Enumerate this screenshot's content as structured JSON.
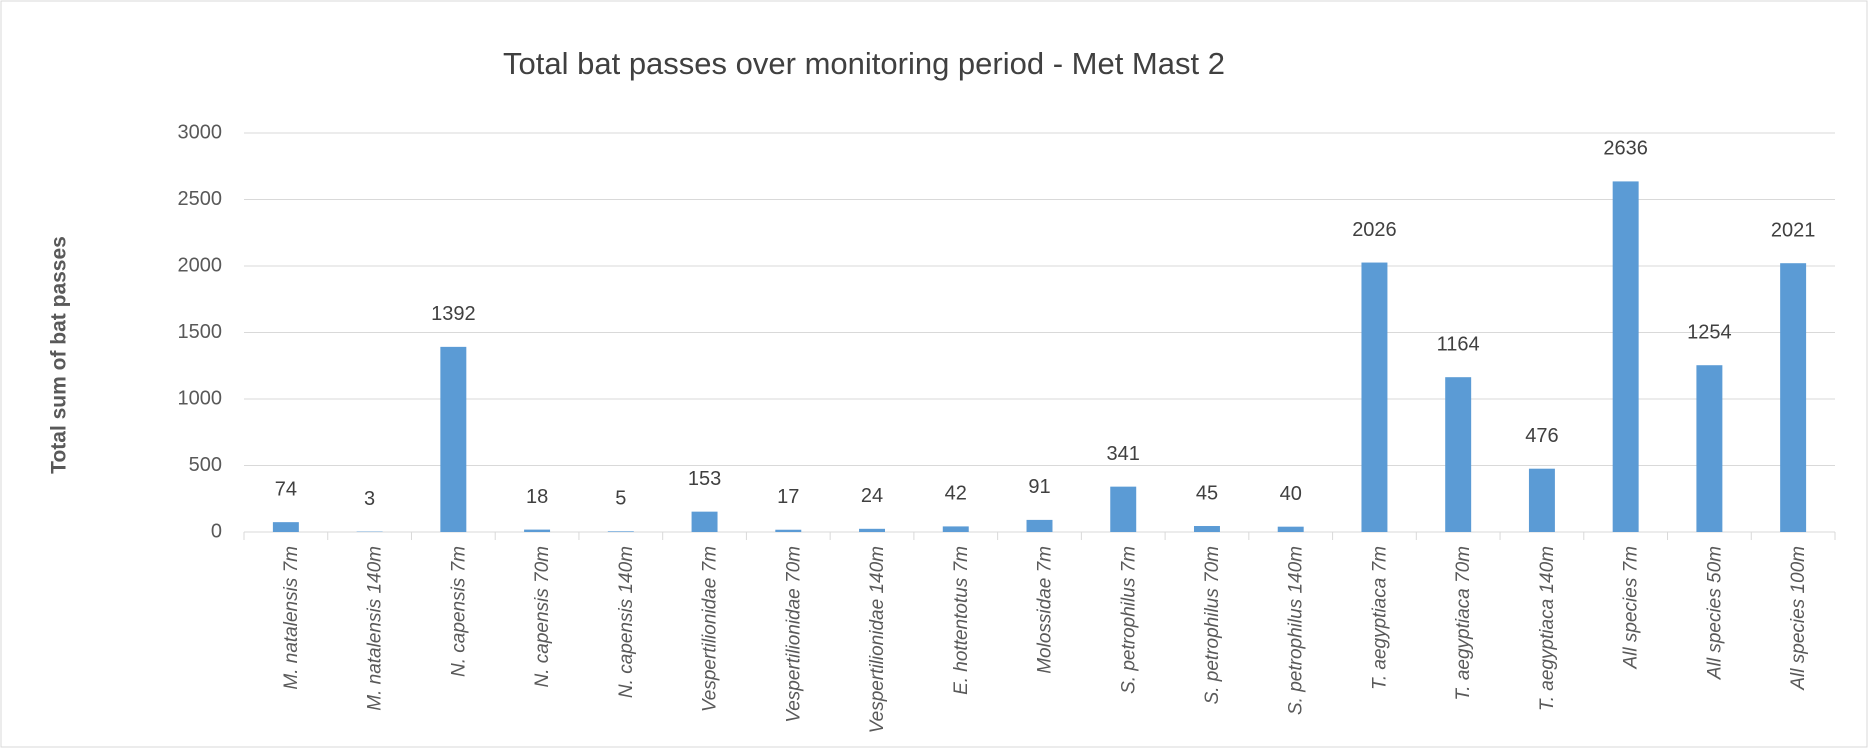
{
  "chart_data": {
    "type": "bar",
    "title": "Total bat passes over monitoring period - Met Mast 2",
    "y_label": "Total sum of bat passes",
    "categories": [
      "M. natalensis 7m",
      "M. natalensis 140m",
      "N. capensis 7m",
      "N. capensis 70m",
      "N. capensis 140m",
      "Vespertilionidae 7m",
      "Vespertilionidae 70m",
      "Vespertilionidae 140m",
      "E. hottentotus 7m",
      "Molossidae 7m",
      "S. petrophilus 7m",
      "S. petrophilus 70m",
      "S. petrophilus 140m",
      "T. aegyptiaca 7m",
      "T. aegyptiaca 70m",
      "T. aegyptiaca 140m",
      "All species 7m",
      "All species 50m",
      "All species 100m"
    ],
    "values": [
      74,
      3,
      1392,
      18,
      5,
      153,
      17,
      24,
      42,
      91,
      341,
      45,
      40,
      2026,
      1164,
      476,
      2636,
      1254,
      2021
    ],
    "color": "#5b9bd5",
    "ylim": [
      0,
      3000
    ],
    "yticks": [
      0,
      500,
      1000,
      1500,
      2000,
      2500,
      3000
    ],
    "grid": true
  }
}
